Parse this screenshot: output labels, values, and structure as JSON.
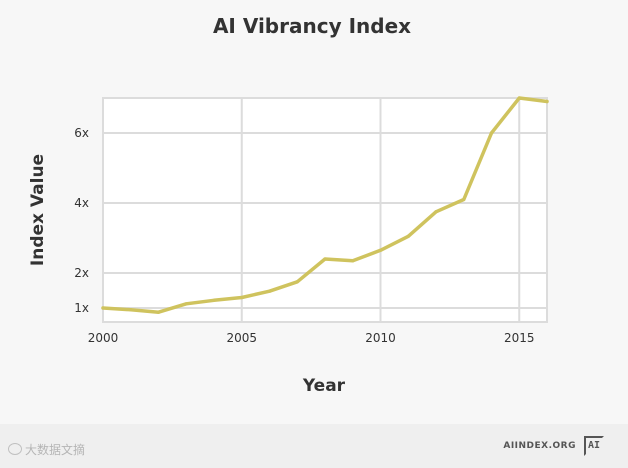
{
  "chart_data": {
    "type": "line",
    "title": "AI Vibrancy Index",
    "xlabel": "Year",
    "ylabel": "Index Value",
    "x": [
      2000,
      2001,
      2002,
      2003,
      2004,
      2005,
      2006,
      2007,
      2008,
      2009,
      2010,
      2011,
      2012,
      2013,
      2014,
      2015,
      2016
    ],
    "series": [
      {
        "name": "AI Vibrancy Index",
        "values": [
          1.0,
          0.95,
          0.88,
          1.12,
          1.22,
          1.3,
          1.48,
          1.75,
          2.4,
          2.35,
          2.65,
          3.05,
          3.75,
          4.1,
          6.0,
          7.0,
          6.9
        ],
        "color": "#cfc35e"
      }
    ],
    "x_ticks": [
      2000,
      2005,
      2010,
      2015
    ],
    "x_tick_labels": [
      "2000",
      "2005",
      "2010",
      "2015"
    ],
    "y_ticks": [
      1,
      2,
      4,
      6
    ],
    "y_tick_labels": [
      "1x",
      "2x",
      "4x",
      "6x"
    ],
    "xlim": [
      2000,
      2016
    ],
    "ylim": [
      0.6,
      7.0
    ],
    "grid": true,
    "legend": "none"
  },
  "footer": {
    "watermark": "大数据文摘",
    "site": "AIINDEX.ORG",
    "logo_text": "AI"
  },
  "colors": {
    "background": "#f7f7f7",
    "plot_background": "#ffffff",
    "grid": "#dcdcdc",
    "line": "#cfc35e",
    "text": "#333333"
  }
}
